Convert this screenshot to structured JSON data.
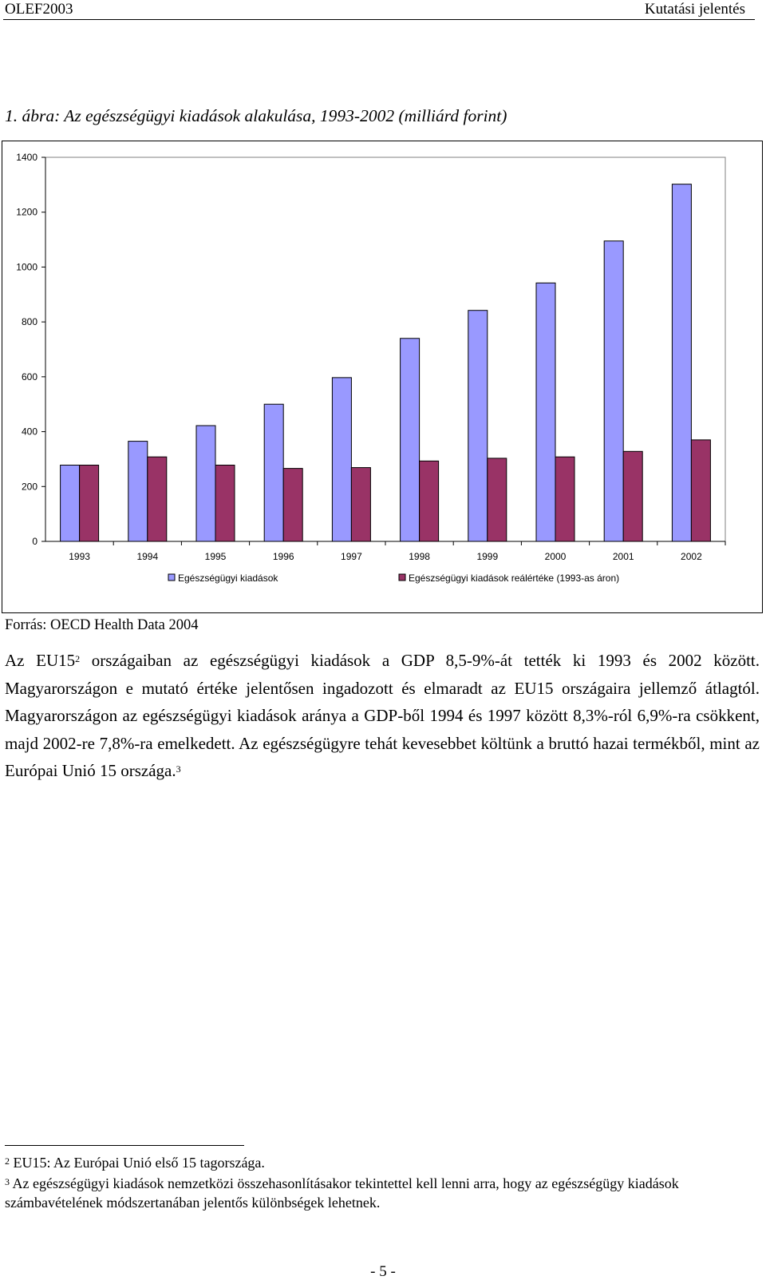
{
  "header": {
    "left": "OLEF2003",
    "right": "Kutatási jelentés"
  },
  "figure": {
    "caption": "1. ábra: Az egészségügyi kiadások alakulása, 1993-2002 (milliárd forint)",
    "source": "Forrás: OECD Health Data 2004"
  },
  "chart_data": {
    "type": "bar",
    "categories": [
      "1993",
      "1994",
      "1995",
      "1996",
      "1997",
      "1998",
      "1999",
      "2000",
      "2001",
      "2002"
    ],
    "series": [
      {
        "name": "Egészségügyi kiadások",
        "color": "#9999ff",
        "values": [
          278,
          365,
          422,
          500,
          597,
          740,
          842,
          942,
          1095,
          1302
        ]
      },
      {
        "name": "Egészségügyi kiadások reálértéke (1993-as áron)",
        "color": "#993366",
        "values": [
          278,
          308,
          278,
          266,
          269,
          293,
          303,
          308,
          328,
          370
        ]
      }
    ],
    "yticks": [
      "0",
      "200",
      "400",
      "600",
      "800",
      "1000",
      "1200",
      "1400"
    ],
    "ylim": [
      0,
      1400
    ],
    "grid": false,
    "legend": "bottom"
  },
  "paragraph": {
    "p1a": "Az EU15",
    "sup1": "2",
    "p1b": " országaiban az egészségügyi kiadások a GDP 8,5-9%-át tették ki 1993 és 2002 között. Magyarországon e mutató értéke jelentősen ingadozott és elmaradt az EU15 országaira jellemző átlagtól. Magyarországon az egészségügyi kiadások aránya a GDP-ből 1994 és 1997 között 8,3%-ról 6,9%-ra csökkent, majd 2002-re 7,8%-ra emelkedett. Az egészségügyre tehát kevesebbet költünk a bruttó hazai termékből, mint az Európai Unió 15 országa.",
    "sup2": "3"
  },
  "footnotes": {
    "fn1_num": "2",
    "fn1_text": " EU15: Az Európai Unió első 15 tagországa.",
    "fn2_num": "3",
    "fn2_text": " Az egészségügyi kiadások nemzetközi összehasonlításakor tekintettel kell lenni arra, hogy az egészségügy kiadások számbavételének módszertanában jelentős különbségek lehetnek."
  },
  "page_number": "- 5 -"
}
